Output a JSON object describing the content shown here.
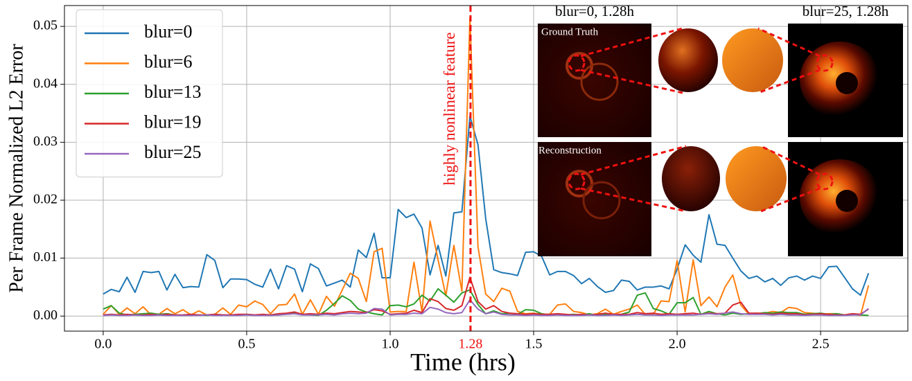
{
  "chart_data": {
    "type": "line",
    "xlabel": "Time (hrs)",
    "ylabel": "Per Frame Normalized L2 Error",
    "xlim": [
      -0.135,
      2.804
    ],
    "ylim": [
      -0.0026,
      0.0536
    ],
    "xticks": [
      {
        "value": 0,
        "label": "0.0"
      },
      0.5,
      {
        "value": 1,
        "label": "1.0"
      },
      1.5,
      {
        "value": 2,
        "label": "2.0"
      },
      2.5
    ],
    "yticks": [
      {
        "value": 0,
        "label": "0.00"
      },
      {
        "value": 0.01,
        "label": "0.01"
      },
      {
        "value": 0.02,
        "label": "0.02"
      },
      {
        "value": 0.03,
        "label": "0.03"
      },
      {
        "value": 0.04,
        "label": "0.04"
      },
      {
        "value": 0.05,
        "label": "0.05"
      }
    ],
    "grid": true,
    "legend": "upper left",
    "vline": {
      "x": 1.28,
      "label": "highly nonlinear feature",
      "color": "#ee1111"
    },
    "insets": {
      "left_title": "blur=0, 1.28h",
      "right_title": "blur=25, 1.28h",
      "top_label": "Ground Truth",
      "bottom_label": "Reconstruction"
    },
    "x": [
      0,
      0.028,
      0.056,
      0.083,
      0.111,
      0.139,
      0.167,
      0.194,
      0.222,
      0.25,
      0.278,
      0.306,
      0.333,
      0.361,
      0.389,
      0.417,
      0.444,
      0.472,
      0.5,
      0.528,
      0.556,
      0.583,
      0.611,
      0.639,
      0.667,
      0.694,
      0.722,
      0.75,
      0.778,
      0.806,
      0.833,
      0.861,
      0.889,
      0.917,
      0.944,
      0.972,
      1.0,
      1.028,
      1.056,
      1.083,
      1.111,
      1.139,
      1.167,
      1.194,
      1.222,
      1.25,
      1.278,
      1.306,
      1.333,
      1.361,
      1.389,
      1.417,
      1.444,
      1.472,
      1.5,
      1.528,
      1.556,
      1.583,
      1.611,
      1.639,
      1.667,
      1.694,
      1.722,
      1.75,
      1.778,
      1.806,
      1.833,
      1.861,
      1.889,
      1.917,
      1.944,
      1.972,
      2.0,
      2.028,
      2.056,
      2.083,
      2.111,
      2.139,
      2.167,
      2.194,
      2.222,
      2.25,
      2.278,
      2.306,
      2.333,
      2.361,
      2.389,
      2.417,
      2.444,
      2.472,
      2.5,
      2.528,
      2.556,
      2.583,
      2.611,
      2.639,
      2.667
    ],
    "series": [
      {
        "name": "blur=0",
        "color": "#1f77b4",
        "values": [
          0.0038,
          0.0046,
          0.0042,
          0.0067,
          0.0041,
          0.0077,
          0.0075,
          0.0077,
          0.0045,
          0.0072,
          0.0049,
          0.0051,
          0.005,
          0.0106,
          0.0096,
          0.0049,
          0.0064,
          0.0064,
          0.0063,
          0.0055,
          0.005,
          0.0081,
          0.0047,
          0.0087,
          0.0081,
          0.0042,
          0.009,
          0.0082,
          0.0052,
          0.0057,
          0.0062,
          0.005,
          0.0114,
          0.0101,
          0.0143,
          0.0066,
          0.0066,
          0.0184,
          0.017,
          0.0176,
          0.0152,
          0.0071,
          0.0122,
          0.0069,
          0.0178,
          0.018,
          0.0345,
          0.0296,
          0.0168,
          0.008,
          0.0075,
          0.0073,
          0.007,
          0.011,
          0.0111,
          0.0103,
          0.0071,
          0.0077,
          0.0077,
          0.007,
          0.0056,
          0.0065,
          0.0051,
          0.0041,
          0.0044,
          0.0062,
          0.006,
          0.0045,
          0.005,
          0.005,
          0.0052,
          0.0047,
          0.0081,
          0.0123,
          0.0105,
          0.0093,
          0.0175,
          0.0124,
          0.0122,
          0.01,
          0.0078,
          0.0065,
          0.0069,
          0.0059,
          0.0065,
          0.0053,
          0.0066,
          0.0069,
          0.0062,
          0.0069,
          0.0065,
          0.0085,
          0.0086,
          0.0067,
          0.0047,
          0.0036,
          0.0074
        ]
      },
      {
        "name": "blur=6",
        "color": "#ff7f0e",
        "values": [
          0.0003,
          0.0018,
          0.0003,
          0.0014,
          0.0004,
          0.0016,
          0.0002,
          0.0003,
          0.0013,
          0.0004,
          0.0011,
          0.0002,
          0.0009,
          0.0002,
          0.0003,
          0.0014,
          0.0003,
          0.0019,
          0.0016,
          0.0026,
          0.002,
          0.0004,
          0.0019,
          0.002,
          0.0038,
          0.0003,
          0.0028,
          0.0003,
          0.0034,
          0.0017,
          0.0045,
          0.0074,
          0.0065,
          0.0025,
          0.0111,
          0.0117,
          0.0007,
          0.0008,
          0.0008,
          0.0093,
          0.0007,
          0.0164,
          0.0097,
          0.0035,
          0.0122,
          0.0043,
          0.0515,
          0.012,
          0.0038,
          0.0025,
          0.0048,
          0.0043,
          0.0008,
          0.0004,
          0.0005,
          0.0003,
          0.0003,
          0.0019,
          0.0021,
          0.0008,
          0.0006,
          0.0002,
          0.0004,
          0.0012,
          0.0003,
          0.0008,
          0.0012,
          0.0019,
          0.0003,
          0.0003,
          0.0026,
          0.0025,
          0.0096,
          0.0007,
          0.0097,
          0.0018,
          0.0033,
          0.0016,
          0.005,
          0.0071,
          0.0019,
          0.0003,
          0.0005,
          0.0005,
          0.0008,
          0.0006,
          0.0015,
          0.0013,
          0.0006,
          0.0005,
          0.0003,
          0.0004,
          0.0004,
          0.0002,
          0.0003,
          0.0001,
          0.0053
        ]
      },
      {
        "name": "blur=13",
        "color": "#2ca02c",
        "values": [
          0.0012,
          0.0018,
          0.0005,
          0.0002,
          0.0003,
          0.0004,
          0.0005,
          0.0003,
          0.0004,
          0.0002,
          0.0001,
          0.0001,
          0.0002,
          0.0001,
          0.0003,
          0.0002,
          0.0001,
          0.0002,
          0.0003,
          0.0002,
          0.0002,
          0.0001,
          0.0002,
          0.0004,
          0.0006,
          0.0003,
          0.0002,
          0.0001,
          0.001,
          0.0022,
          0.0035,
          0.0027,
          0.0012,
          0.0007,
          0.0004,
          0.0002,
          0.0018,
          0.0019,
          0.0016,
          0.0021,
          0.0036,
          0.0026,
          0.0047,
          0.0036,
          0.0024,
          0.004,
          0.0045,
          0.002,
          0.0004,
          0.0009,
          0.0004,
          0.0005,
          0.0003,
          0.0011,
          0.001,
          0.0004,
          0.0002,
          0.0003,
          0.0002,
          0.0003,
          0.0002,
          0.0004,
          0.0001,
          0.0003,
          0.0002,
          0.0003,
          0.0007,
          0.0036,
          0.004,
          0.0013,
          0.0009,
          0.0003,
          0.0023,
          0.0023,
          0.0032,
          0.0003,
          0.0008,
          0.0004,
          0.0002,
          0.0005,
          0.0003,
          0.0004,
          0.0004,
          0.0006,
          0.0005,
          0.0007,
          0.0006,
          0.0006,
          0.0003,
          0.0004,
          0.0005,
          0.0003,
          0.0004,
          0.0002,
          0.0003,
          0.0002,
          0.0001
        ]
      },
      {
        "name": "blur=19",
        "color": "#d62728",
        "values": [
          0.0002,
          0.0003,
          0.0002,
          0.0003,
          0.0002,
          0.0002,
          0.0003,
          0.0002,
          0.0003,
          0.0002,
          0.0002,
          0.0003,
          0.0002,
          0.0002,
          0.0003,
          0.0002,
          0.0002,
          0.0003,
          0.0003,
          0.0002,
          0.0003,
          0.0002,
          0.0004,
          0.0005,
          0.0007,
          0.0003,
          0.0004,
          0.0003,
          0.0005,
          0.0004,
          0.0006,
          0.0008,
          0.0007,
          0.0006,
          0.0011,
          0.0009,
          0.0003,
          0.0004,
          0.0005,
          0.001,
          0.0006,
          0.003,
          0.0025,
          0.0013,
          0.001,
          0.0018,
          0.0067,
          0.0025,
          0.0012,
          0.0018,
          0.0008,
          0.0005,
          0.0004,
          0.0003,
          0.0004,
          0.0003,
          0.0003,
          0.0004,
          0.0003,
          0.0002,
          0.0003,
          0.0002,
          0.0003,
          0.0005,
          0.0003,
          0.0003,
          0.0003,
          0.0006,
          0.0004,
          0.0005,
          0.0003,
          0.0004,
          0.0003,
          0.0004,
          0.0005,
          0.0003,
          0.0005,
          0.0004,
          0.0005,
          0.0019,
          0.0024,
          0.0005,
          0.0005,
          0.0004,
          0.0003,
          0.0005,
          0.0004,
          0.0004,
          0.0002,
          0.0003,
          0.0004,
          0.0003,
          0.0002,
          0.0002,
          0.0004,
          0.0003,
          0.0012
        ]
      },
      {
        "name": "blur=25",
        "color": "#9467bd",
        "values": [
          0.0001,
          0.0002,
          0.0001,
          0.0001,
          0.0002,
          0.0001,
          0.0001,
          0.0002,
          0.0001,
          0.0001,
          0.0001,
          0.0001,
          0.0001,
          0.0002,
          0.0001,
          0.0001,
          0.0001,
          0.0001,
          0.0002,
          0.0001,
          0.0001,
          0.0001,
          0.0002,
          0.0003,
          0.0004,
          0.0002,
          0.0002,
          0.0002,
          0.0003,
          0.0002,
          0.0004,
          0.0005,
          0.0004,
          0.0005,
          0.0013,
          0.0012,
          0.0002,
          0.0003,
          0.0003,
          0.0005,
          0.0004,
          0.0015,
          0.0012,
          0.0006,
          0.0004,
          0.0006,
          0.0028,
          0.0012,
          0.0004,
          0.0007,
          0.0003,
          0.0002,
          0.0002,
          0.0001,
          0.0002,
          0.0001,
          0.0001,
          0.0002,
          0.0001,
          0.0001,
          0.0001,
          0.0002,
          0.0001,
          0.0001,
          0.0002,
          0.0001,
          0.0002,
          0.0003,
          0.0002,
          0.0002,
          0.0001,
          0.0002,
          0.0002,
          0.0002,
          0.0002,
          0.0003,
          0.0004,
          0.0003,
          0.0005,
          0.0007,
          0.0004,
          0.0003,
          0.0003,
          0.0003,
          0.0002,
          0.0003,
          0.0002,
          0.0002,
          0.0001,
          0.0002,
          0.0002,
          0.0001,
          0.0001,
          0.0001,
          0.0002,
          0.0002,
          0.0013
        ]
      }
    ]
  }
}
